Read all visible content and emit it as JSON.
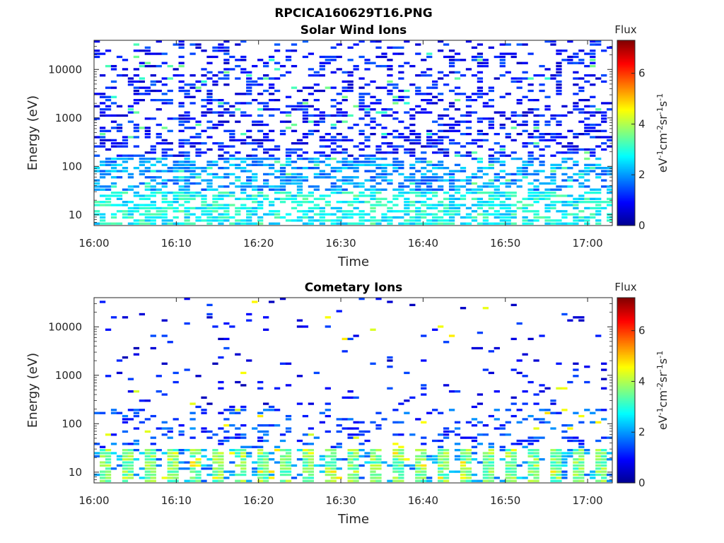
{
  "figure_title": "RPCICA160629T16.PNG",
  "colors": {
    "colormap": [
      "#00008f",
      "#0000ff",
      "#0080ff",
      "#00ffff",
      "#80ff80",
      "#ffff00",
      "#ff8000",
      "#ff0000",
      "#800000"
    ],
    "axis": "#262626",
    "background": "#ffffff"
  },
  "chart_data": [
    {
      "type": "heatmap",
      "title": "Solar Wind Ions",
      "xlabel": "Time",
      "ylabel": "Energy (eV)",
      "xlim": [
        "16:00",
        "17:03"
      ],
      "ylim": [
        6,
        40000
      ],
      "y_scale": "log",
      "x_ticks": [
        "16:00",
        "16:10",
        "16:20",
        "16:30",
        "16:40",
        "16:50",
        "17:00"
      ],
      "y_ticks": [
        "10",
        "100",
        "1000",
        "10000"
      ],
      "colorbar": {
        "label": "Flux",
        "units_label": "eV-1cm-2sr-1s-1",
        "range": [
          0,
          7.3
        ],
        "ticks": [
          "0",
          "2",
          "4",
          "6"
        ]
      },
      "description_stats": {
        "low_energy_band_eV": [
          6,
          30
        ],
        "low_energy_flux_typical": 2.8,
        "mid_energy_band_eV": [
          30,
          150
        ],
        "mid_energy_flux_typical": 2.0,
        "high_energy_band_eV": [
          150,
          40000
        ],
        "high_energy_flux_typical": 1.0,
        "peak_flux": 3.6
      },
      "grid": false,
      "legend": "colorbar-right"
    },
    {
      "type": "heatmap",
      "title": "Cometary Ions",
      "xlabel": "Time",
      "ylabel": "Energy (eV)",
      "xlim": [
        "16:00",
        "17:03"
      ],
      "ylim": [
        6,
        40000
      ],
      "y_scale": "log",
      "x_ticks": [
        "16:00",
        "16:10",
        "16:20",
        "16:30",
        "16:40",
        "16:50",
        "17:00"
      ],
      "y_ticks": [
        "10",
        "100",
        "1000",
        "10000"
      ],
      "colorbar": {
        "label": "Flux",
        "units_label": "eV-1cm-2sr-1s-1",
        "range": [
          0,
          7.3
        ],
        "ticks": [
          "0",
          "2",
          "4",
          "6"
        ]
      },
      "description_stats": {
        "low_energy_band_eV": [
          6,
          30
        ],
        "low_energy_flux_typical": 3.6,
        "mid_energy_band_eV": [
          30,
          200
        ],
        "mid_energy_flux_typical": 1.4,
        "high_energy_band_eV": [
          200,
          40000
        ],
        "high_energy_flux_typical": 0.9,
        "peak_flux": 4.8
      },
      "grid": false,
      "legend": "colorbar-right"
    }
  ]
}
